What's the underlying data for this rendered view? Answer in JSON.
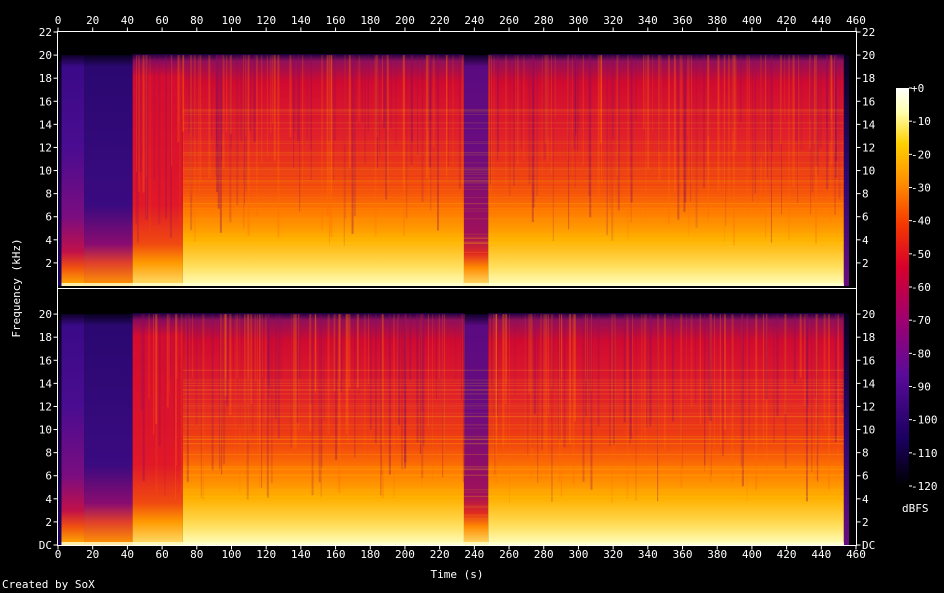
{
  "chart_data": {
    "type": "heatmap",
    "subtype": "spectrogram",
    "xlabel": "Time (s)",
    "ylabel": "Frequency (kHz)",
    "xlim": [
      0,
      460
    ],
    "ylim": [
      0,
      22
    ],
    "x_ticks": [
      "0",
      "20",
      "40",
      "60",
      "80",
      "100",
      "120",
      "140",
      "160",
      "180",
      "200",
      "220",
      "240",
      "260",
      "280",
      "300",
      "320",
      "340",
      "360",
      "380",
      "400",
      "420",
      "440",
      "460"
    ],
    "y_ticks_top_channel": [
      "2",
      "4",
      "6",
      "8",
      "10",
      "12",
      "14",
      "16",
      "18",
      "20",
      "22"
    ],
    "y_ticks_bottom_channel": [
      "DC",
      "2",
      "4",
      "6",
      "8",
      "10",
      "12",
      "14",
      "16",
      "18",
      "20"
    ],
    "channels": 2,
    "colorbar": {
      "label": "dBFS",
      "ticks": [
        "+0",
        "-10",
        "-20",
        "-30",
        "-40",
        "-50",
        "-60",
        "-70",
        "-80",
        "-90",
        "-100",
        "-110",
        "-120"
      ],
      "range": [
        -120,
        0
      ]
    },
    "colors": {
      "background": "#000000",
      "text": "#ffffff",
      "palette": [
        "#000000",
        "#1a0060",
        "#5a0b9a",
        "#a0006f",
        "#d8002b",
        "#f53a00",
        "#ff8c00",
        "#ffd000",
        "#ffffb0",
        "#ffffff"
      ]
    },
    "segments": [
      {
        "t_start": 0,
        "t_end": 2,
        "level": "silence"
      },
      {
        "t_start": 2,
        "t_end": 15,
        "level": "quiet-intro"
      },
      {
        "t_start": 15,
        "t_end": 43,
        "level": "quiet-intro-darker"
      },
      {
        "t_start": 43,
        "t_end": 72,
        "level": "loud-narrowband"
      },
      {
        "t_start": 72,
        "t_end": 234,
        "level": "loud-fullband"
      },
      {
        "t_start": 234,
        "t_end": 248,
        "level": "dip"
      },
      {
        "t_start": 248,
        "t_end": 453,
        "level": "loud-fullband"
      },
      {
        "t_start": 453,
        "t_end": 456,
        "level": "fadeout"
      }
    ]
  },
  "credit": "Created by SoX"
}
